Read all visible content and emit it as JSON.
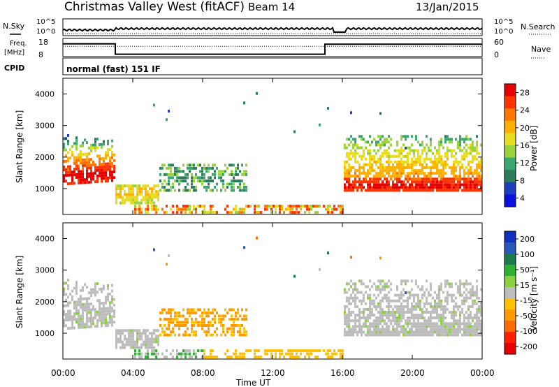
{
  "header": {
    "title": "Christmas Valley West (fitACF)",
    "beam": "Beam 14",
    "date": "13/Jan/2015"
  },
  "summary_panel": {
    "nsky_label": "N.Sky",
    "nsky_ticks": [
      "10^5",
      "10^0"
    ],
    "nsearch_label": "N.Search",
    "nsearch_ticks": [
      "10^5",
      "10^0"
    ],
    "freq_label_line1": "Freq.",
    "freq_label_line2": "[MHz]",
    "freq_ticks": [
      "18",
      "8"
    ],
    "nave_label": "Nave",
    "nave_ticks": [
      "60",
      "0"
    ],
    "cpid_label": "CPID",
    "cpid_text": "normal (fast) 151 IF"
  },
  "x_ticks": [
    "00:00",
    "04:00",
    "08:00",
    "12:00",
    "16:00",
    "20:00",
    "00:00"
  ],
  "x_label": "Time UT",
  "y_ticks": [
    "4000",
    "3000",
    "2000",
    "1000"
  ],
  "y_label": "Slant Range [km]",
  "power_colorbar": {
    "label": "Power [dB]",
    "ticks": [
      "28",
      "24",
      "20",
      "16",
      "12",
      "8",
      "4"
    ],
    "colors": [
      "#e60000",
      "#ff3300",
      "#ff7700",
      "#ffb000",
      "#e8dc1e",
      "#9ad23c",
      "#3aa86e",
      "#2e7d5a",
      "#1d3fbf",
      "#0a10e0"
    ]
  },
  "velocity_colorbar": {
    "label": "Velocity [m s⁻¹]",
    "ticks": [
      "200",
      "100",
      "50",
      "15",
      "-15",
      "-50",
      "-100",
      "-200"
    ],
    "colors": [
      "#1030c0",
      "#2858b8",
      "#1d7a4a",
      "#30b030",
      "#8ad040",
      "#bdbdbd",
      "#ffc000",
      "#ff9a00",
      "#ff6a00",
      "#ff2000",
      "#e60000"
    ]
  },
  "chart_data": [
    {
      "type": "line",
      "title": "N.Sky / N.Search",
      "x": [
        "00:00",
        "04:00",
        "08:00",
        "12:00",
        "16:00",
        "20:00",
        "00:00"
      ],
      "series": [
        {
          "name": "N.Sky",
          "values": [
            0.4,
            0.6,
            0.5,
            0.5,
            0.5,
            0.5,
            0.5
          ]
        },
        {
          "name": "N.Search",
          "values": [
            0,
            0,
            0,
            0,
            0,
            0,
            0
          ]
        }
      ]
    },
    {
      "type": "line",
      "title": "Freq. / Nave",
      "x_hours": [
        0,
        3,
        3,
        15,
        15,
        24
      ],
      "series": [
        {
          "name": "Freq. [MHz]",
          "values": [
            15,
            15,
            9.3,
            9.3,
            14.8,
            14.8
          ]
        },
        {
          "name": "Nave",
          "values": [
            34,
            34,
            34,
            34,
            34,
            34
          ]
        }
      ],
      "ylim_freq": [
        8,
        18
      ],
      "ylim_nave": [
        0,
        60
      ]
    },
    {
      "type": "heatmap",
      "title": "Power [dB]",
      "x": "Time UT (hours)",
      "y": "Slant Range [km]",
      "xlim": [
        0,
        24
      ],
      "ylim": [
        180,
        4500
      ],
      "regions": [
        {
          "t0": 0.0,
          "t1": 3.0,
          "r_center": 1300,
          "r_spread": 300,
          "peak_db": 26
        },
        {
          "t0": 3.0,
          "t1": 5.0,
          "r_center": 800,
          "r_spread": 180,
          "peak_db": 16
        },
        {
          "t0": 5.0,
          "t1": 10.5,
          "r_center": 1300,
          "r_spread": 250,
          "peak_db": 10
        },
        {
          "t0": 16.0,
          "t1": 24.0,
          "r_center": 1100,
          "r_spread": 400,
          "peak_db": 26
        }
      ]
    },
    {
      "type": "heatmap",
      "title": "Velocity [m s⁻¹]",
      "x": "Time UT (hours)",
      "y": "Slant Range [km]",
      "xlim": [
        0,
        24
      ],
      "ylim": [
        180,
        4500
      ],
      "regions": [
        {
          "t0": 0.0,
          "t1": 3.0,
          "r_center": 1800,
          "velocity": 0
        },
        {
          "t0": 3.0,
          "t1": 5.5,
          "r_center": 800,
          "velocity": 0
        },
        {
          "t0": 5.5,
          "t1": 10.5,
          "r_center": 1300,
          "velocity": -40
        },
        {
          "t0": 16.0,
          "t1": 24.0,
          "r_center": 1300,
          "velocity": 0
        }
      ]
    }
  ]
}
